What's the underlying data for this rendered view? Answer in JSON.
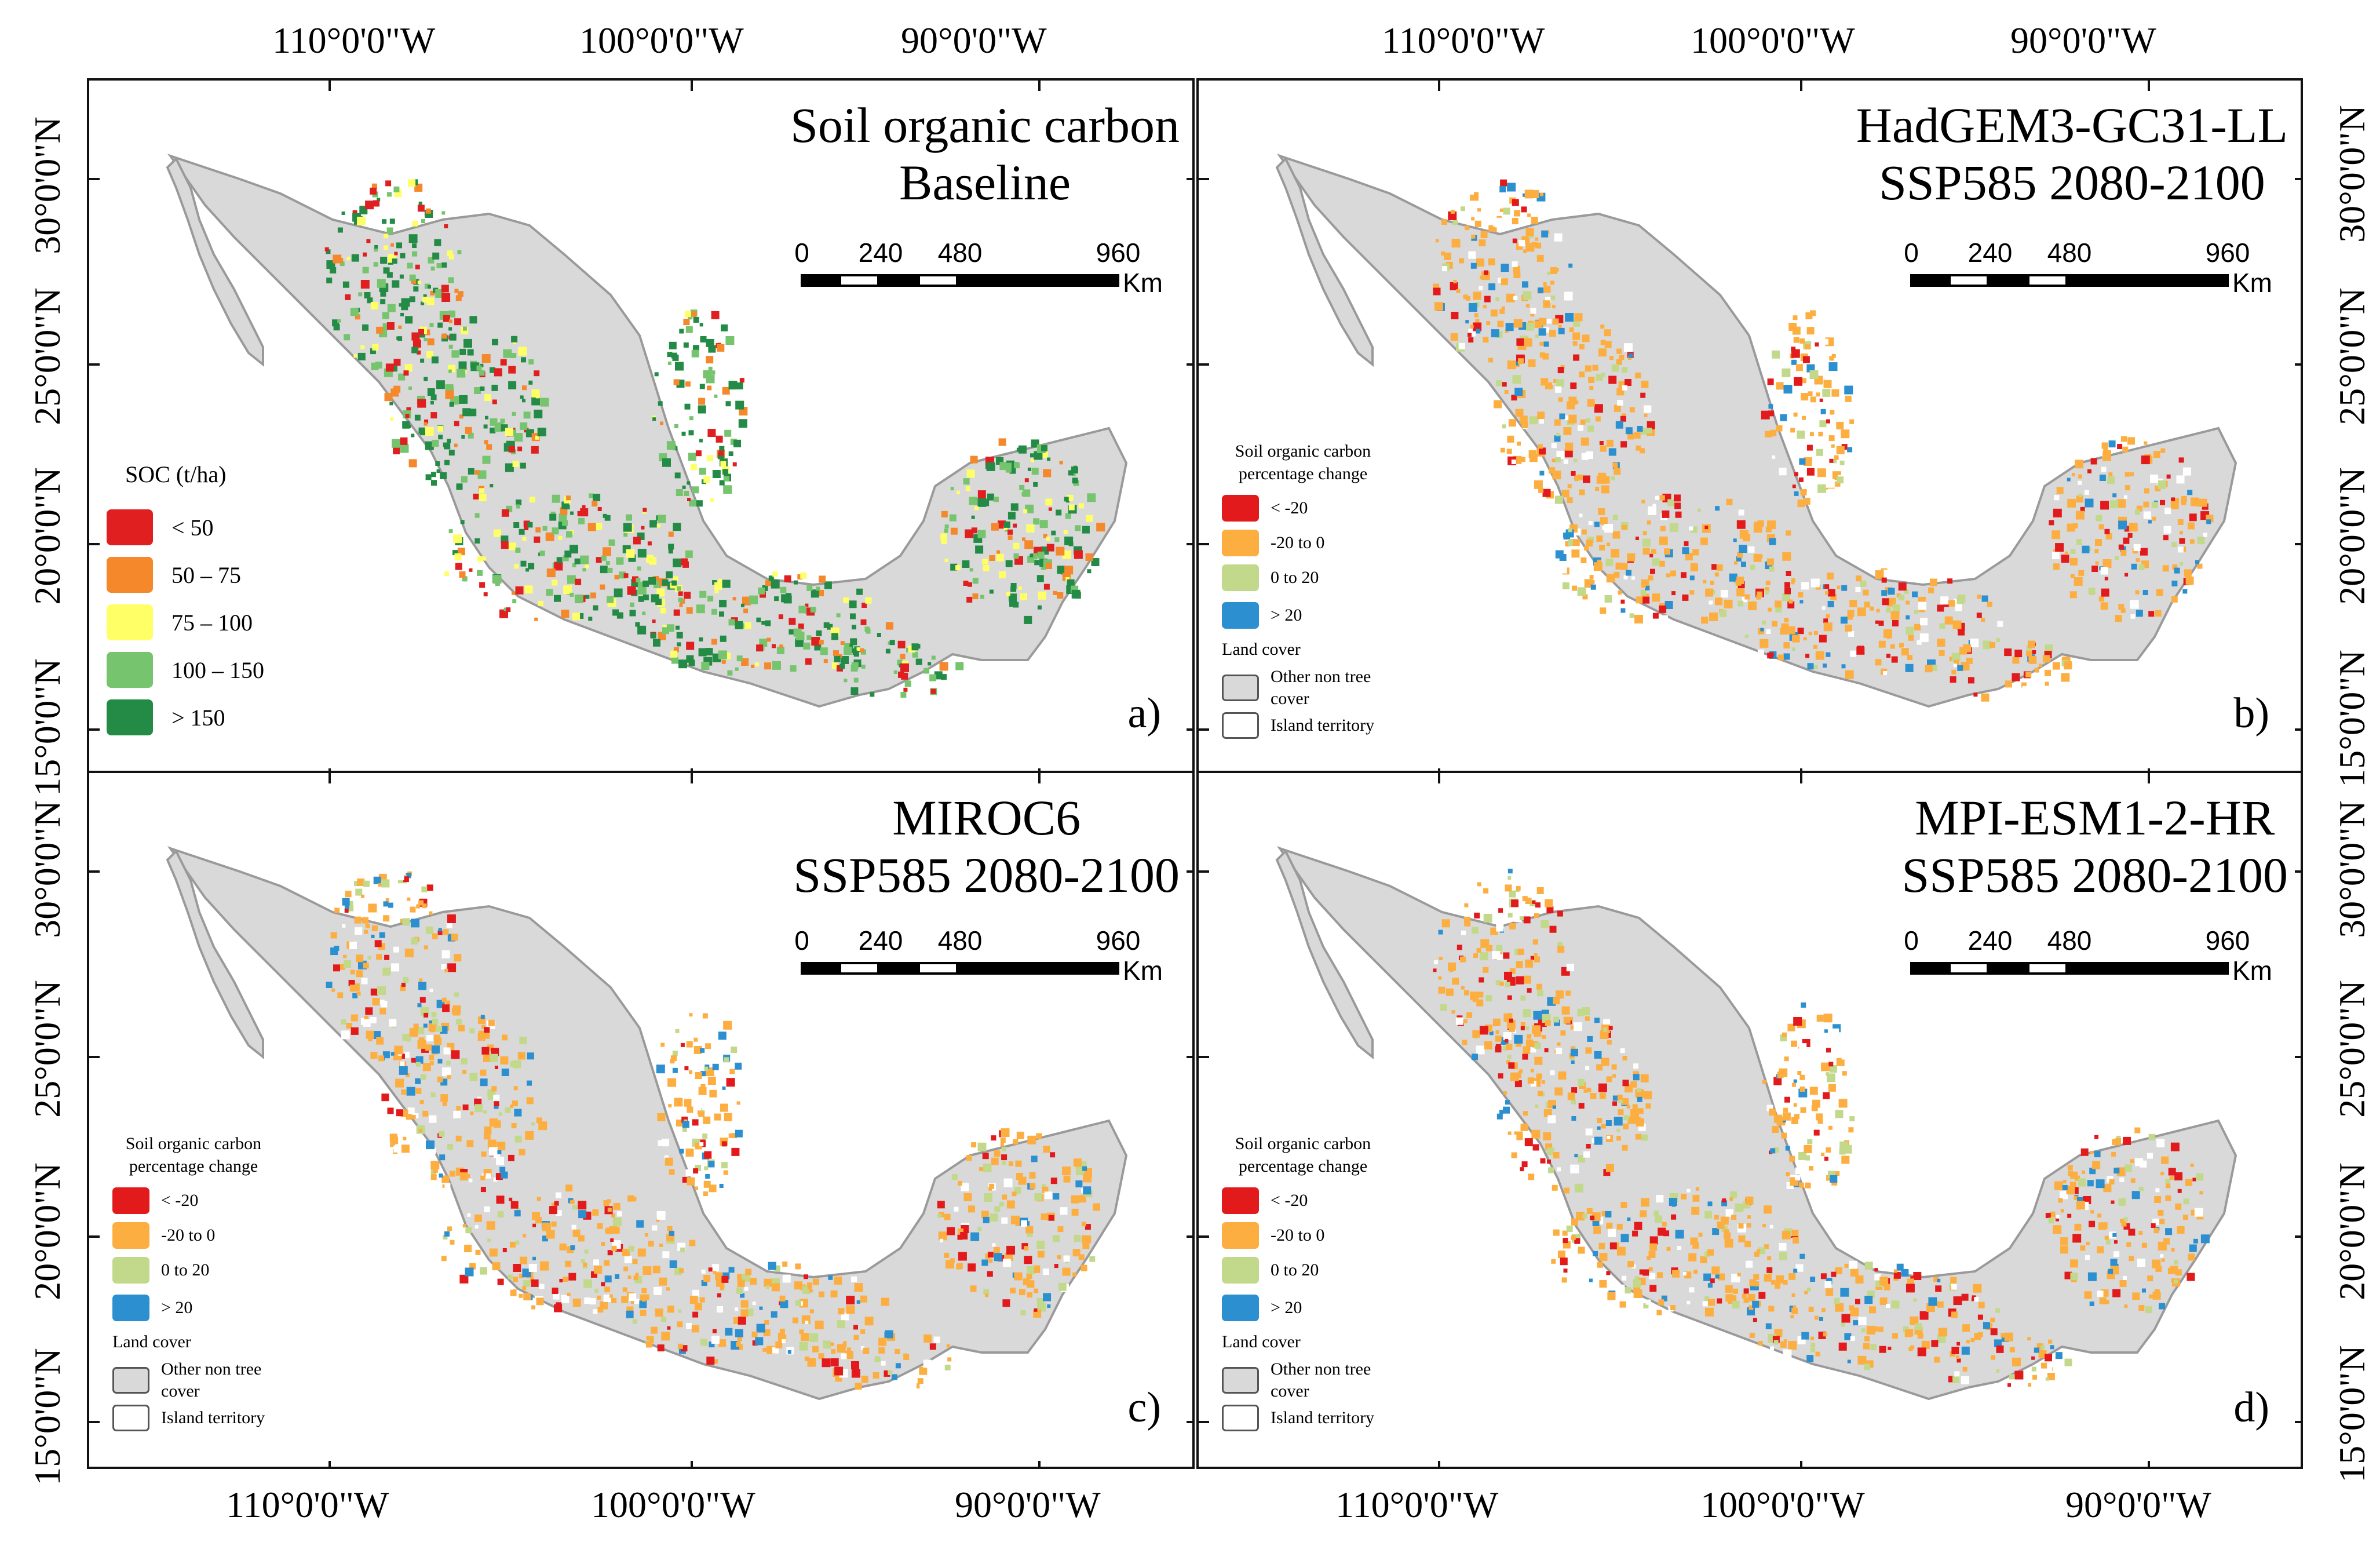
{
  "coordinates": {
    "lon_labels": [
      "110°0'0\"W",
      "100°0'0\"W",
      "90°0'0\"W"
    ],
    "lat_labels": [
      "30°0'0\"N",
      "25°0'0\"N",
      "20°0'0\"N",
      "15°0'0\"N"
    ]
  },
  "panels": [
    {
      "id": "a",
      "title_lines": [
        "Soil organic carbon",
        "Baseline"
      ],
      "label": "a)",
      "scale": {
        "ticks": [
          "0",
          "240",
          "480",
          "960"
        ],
        "unit": "Km"
      },
      "legend": {
        "title": "SOC (t/ha)",
        "items": [
          {
            "label": "< 50",
            "color": "#e02020"
          },
          {
            "label": "50 – 75",
            "color": "#f5882a"
          },
          {
            "label": "75 – 100",
            "color": "#ffff66"
          },
          {
            "label": "100 – 150",
            "color": "#77c46e"
          },
          {
            "label": "> 150",
            "color": "#238b45"
          }
        ]
      }
    },
    {
      "id": "b",
      "title_lines": [
        "HadGEM3-GC31-LL",
        "SSP585 2080-2100"
      ],
      "label": "b)",
      "scale": {
        "ticks": [
          "0",
          "240",
          "480",
          "960"
        ],
        "unit": "Km"
      },
      "legend": {
        "title_lines": [
          "Soil organic carbon",
          "percentage change"
        ],
        "items": [
          {
            "label": "< -20",
            "color": "#e31a1c"
          },
          {
            "label": "-20 to 0",
            "color": "#fdae41"
          },
          {
            "label": "0 to 20",
            "color": "#c2d98c"
          },
          {
            "label": "> 20",
            "color": "#2b8fd0"
          }
        ],
        "land_cover_title": "Land cover",
        "land_cover_items": [
          {
            "label_lines": [
              "Other non tree",
              "cover"
            ],
            "color": "#d9d9d9"
          },
          {
            "label_lines": [
              "Island territory"
            ],
            "color": "#ffffff"
          }
        ]
      }
    },
    {
      "id": "c",
      "title_lines": [
        "MIROC6",
        "SSP585 2080-2100"
      ],
      "label": "c)",
      "scale": {
        "ticks": [
          "0",
          "240",
          "480",
          "960"
        ],
        "unit": "Km"
      },
      "legend": {
        "title_lines": [
          "Soil organic carbon",
          "percentage change"
        ],
        "items": [
          {
            "label": "< -20",
            "color": "#e31a1c"
          },
          {
            "label": "-20 to 0",
            "color": "#fdae41"
          },
          {
            "label": "0 to 20",
            "color": "#c2d98c"
          },
          {
            "label": "> 20",
            "color": "#2b8fd0"
          }
        ],
        "land_cover_title": "Land cover",
        "land_cover_items": [
          {
            "label_lines": [
              "Other non tree",
              "cover"
            ],
            "color": "#d9d9d9"
          },
          {
            "label_lines": [
              "Island territory"
            ],
            "color": "#ffffff"
          }
        ]
      }
    },
    {
      "id": "d",
      "title_lines": [
        "MPI-ESM1-2-HR",
        "SSP585 2080-2100"
      ],
      "label": "d)",
      "scale": {
        "ticks": [
          "0",
          "240",
          "480",
          "960"
        ],
        "unit": "Km"
      },
      "legend": {
        "title_lines": [
          "Soil organic carbon",
          "percentage change"
        ],
        "items": [
          {
            "label": "< -20",
            "color": "#e31a1c"
          },
          {
            "label": "-20 to 0",
            "color": "#fdae41"
          },
          {
            "label": "0 to 20",
            "color": "#c2d98c"
          },
          {
            "label": "> 20",
            "color": "#2b8fd0"
          }
        ],
        "land_cover_title": "Land cover",
        "land_cover_items": [
          {
            "label_lines": [
              "Other non tree",
              "cover"
            ],
            "color": "#d9d9d9"
          },
          {
            "label_lines": [
              "Island territory"
            ],
            "color": "#ffffff"
          }
        ]
      }
    }
  ],
  "colors": {
    "land_gray": "#d9d9d9",
    "land_outline": "#9a9a9a"
  }
}
